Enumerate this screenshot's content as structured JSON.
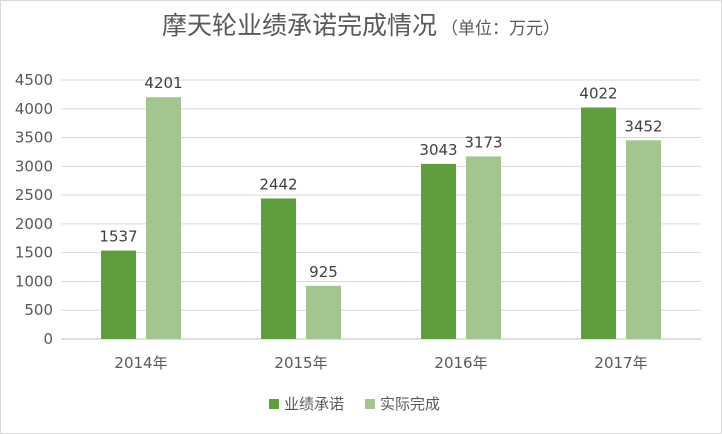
{
  "chart_data": {
    "type": "bar",
    "title": "摩天轮业绩承诺完成情况",
    "subtitle": "（单位：万元）",
    "categories": [
      "2014年",
      "2015年",
      "2016年",
      "2017年"
    ],
    "series": [
      {
        "name": "业绩承诺",
        "values": [
          1537,
          2442,
          3043,
          4022
        ],
        "color": "#5e9e3c"
      },
      {
        "name": "实际完成",
        "values": [
          4201,
          925,
          3173,
          3452
        ],
        "color": "#a3c690"
      }
    ],
    "ylim": [
      0,
      4500
    ],
    "yticks": [
      0,
      500,
      1000,
      1500,
      2000,
      2500,
      3000,
      3500,
      4000,
      4500
    ],
    "xlabel": "",
    "ylabel": "",
    "grid": true,
    "legend_position": "bottom",
    "gridline_color": "#d9d9d9",
    "axis_color": "#bfbfbf"
  }
}
